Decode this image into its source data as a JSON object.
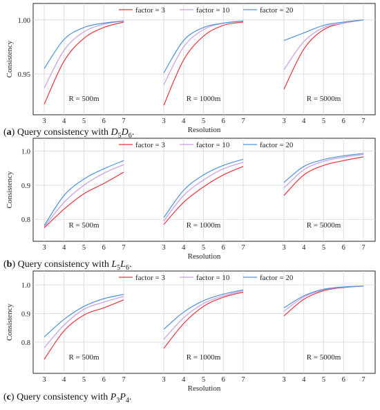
{
  "colors": {
    "factor3": "#e8323a",
    "factor10": "#c79be3",
    "factor20": "#4a90d9",
    "grid": "#d6d6d6",
    "frame": "#222222"
  },
  "legend": {
    "labels": [
      "factor = 3",
      "factor = 10",
      "factor = 20"
    ]
  },
  "captions": [
    {
      "letter": "a",
      "prefix": "Query consistency with",
      "m1": "D",
      "s1": "5",
      "m2": "D",
      "s2": "6",
      "suffix": "."
    },
    {
      "letter": "b",
      "prefix": "Query consistency with",
      "m1": "L",
      "s1": "5",
      "m2": "L",
      "s2": "6",
      "suffix": "."
    },
    {
      "letter": "c",
      "prefix": "Query consistency with",
      "m1": "P",
      "s1": "3",
      "m2": "P",
      "s2": "4",
      "suffix": "."
    }
  ],
  "chart_data": [
    {
      "type": "line",
      "xlabel": "Resolution",
      "ylabel": "Consistency",
      "x": [
        3,
        4,
        5,
        6,
        7
      ],
      "ylim": [
        0.92,
        1.005
      ],
      "yticks": [
        0.95,
        1.0
      ],
      "ytick_labels": [
        "0.95",
        "1.00"
      ],
      "grid": true,
      "legend_position": "top",
      "panels": [
        {
          "label": "R = 500m",
          "series": [
            {
              "name": "factor = 3",
              "values": [
                0.922,
                0.962,
                0.983,
                0.993,
                0.998
              ]
            },
            {
              "name": "factor = 10",
              "values": [
                0.937,
                0.972,
                0.989,
                0.996,
                0.999
              ]
            },
            {
              "name": "factor = 20",
              "values": [
                0.955,
                0.982,
                0.993,
                0.997,
                0.999
              ]
            }
          ]
        },
        {
          "label": "R = 1000m",
          "series": [
            {
              "name": "factor = 3",
              "values": [
                0.921,
                0.963,
                0.985,
                0.995,
                0.998
              ]
            },
            {
              "name": "factor = 10",
              "values": [
                0.94,
                0.975,
                0.991,
                0.997,
                0.999
              ]
            },
            {
              "name": "factor = 20",
              "values": [
                0.951,
                0.981,
                0.993,
                0.997,
                0.999
              ]
            }
          ]
        },
        {
          "label": "R = 5000m",
          "series": [
            {
              "name": "factor = 3",
              "values": [
                0.936,
                0.973,
                0.991,
                0.997,
                1.0
              ]
            },
            {
              "name": "factor = 10",
              "values": [
                0.954,
                0.98,
                0.993,
                0.997,
                1.0
              ]
            },
            {
              "name": "factor = 20",
              "values": [
                0.981,
                0.988,
                0.995,
                0.998,
                1.0
              ]
            }
          ]
        }
      ]
    },
    {
      "type": "line",
      "xlabel": "Resolution",
      "ylabel": "Consistency",
      "x": [
        3,
        4,
        5,
        6,
        7
      ],
      "ylim": [
        0.76,
        1.005
      ],
      "yticks": [
        0.8,
        0.9,
        1.0
      ],
      "ytick_labels": [
        "0.8",
        "0.9",
        "1.0"
      ],
      "grid": true,
      "legend_position": "top",
      "panels": [
        {
          "label": "R = 500m",
          "series": [
            {
              "name": "factor = 3",
              "values": [
                0.775,
                0.83,
                0.875,
                0.905,
                0.938
              ]
            },
            {
              "name": "factor = 10",
              "values": [
                0.778,
                0.85,
                0.9,
                0.935,
                0.96
              ]
            },
            {
              "name": "factor = 20",
              "values": [
                0.782,
                0.87,
                0.918,
                0.948,
                0.972
              ]
            }
          ]
        },
        {
          "label": "R = 1000m",
          "series": [
            {
              "name": "factor = 3",
              "values": [
                0.785,
                0.85,
                0.895,
                0.93,
                0.955
              ]
            },
            {
              "name": "factor = 10",
              "values": [
                0.795,
                0.87,
                0.915,
                0.948,
                0.967
              ]
            },
            {
              "name": "factor = 20",
              "values": [
                0.805,
                0.885,
                0.93,
                0.958,
                0.976
              ]
            }
          ]
        },
        {
          "label": "R = 5000m",
          "series": [
            {
              "name": "factor = 3",
              "values": [
                0.87,
                0.93,
                0.958,
                0.972,
                0.983
              ]
            },
            {
              "name": "factor = 10",
              "values": [
                0.892,
                0.945,
                0.97,
                0.982,
                0.99
              ]
            },
            {
              "name": "factor = 20",
              "values": [
                0.908,
                0.955,
                0.975,
                0.986,
                0.993
              ]
            }
          ]
        }
      ]
    },
    {
      "type": "line",
      "xlabel": "Resolution",
      "ylabel": "Consistency",
      "x": [
        3,
        4,
        5,
        6,
        7
      ],
      "ylim": [
        0.72,
        1.01
      ],
      "yticks": [
        0.8,
        0.9,
        1.0
      ],
      "ytick_labels": [
        "0.8",
        "0.9",
        "1.0"
      ],
      "grid": true,
      "legend_position": "top",
      "panels": [
        {
          "label": "R = 500m",
          "series": [
            {
              "name": "factor = 3",
              "values": [
                0.74,
                0.84,
                0.895,
                0.92,
                0.948
              ]
            },
            {
              "name": "factor = 10",
              "values": [
                0.78,
                0.86,
                0.915,
                0.94,
                0.96
              ]
            },
            {
              "name": "factor = 20",
              "values": [
                0.818,
                0.88,
                0.925,
                0.952,
                0.967
              ]
            }
          ]
        },
        {
          "label": "R = 1000m",
          "series": [
            {
              "name": "factor = 3",
              "values": [
                0.778,
                0.865,
                0.925,
                0.957,
                0.975
              ]
            },
            {
              "name": "factor = 10",
              "values": [
                0.81,
                0.885,
                0.935,
                0.962,
                0.98
              ]
            },
            {
              "name": "factor = 20",
              "values": [
                0.845,
                0.905,
                0.945,
                0.968,
                0.983
              ]
            }
          ]
        },
        {
          "label": "R = 5000m",
          "series": [
            {
              "name": "factor = 3",
              "values": [
                0.892,
                0.95,
                0.98,
                0.991,
                0.996
              ]
            },
            {
              "name": "factor = 10",
              "values": [
                0.908,
                0.958,
                0.983,
                0.992,
                0.996
              ]
            },
            {
              "name": "factor = 20",
              "values": [
                0.92,
                0.962,
                0.985,
                0.993,
                0.996
              ]
            }
          ]
        }
      ]
    }
  ]
}
